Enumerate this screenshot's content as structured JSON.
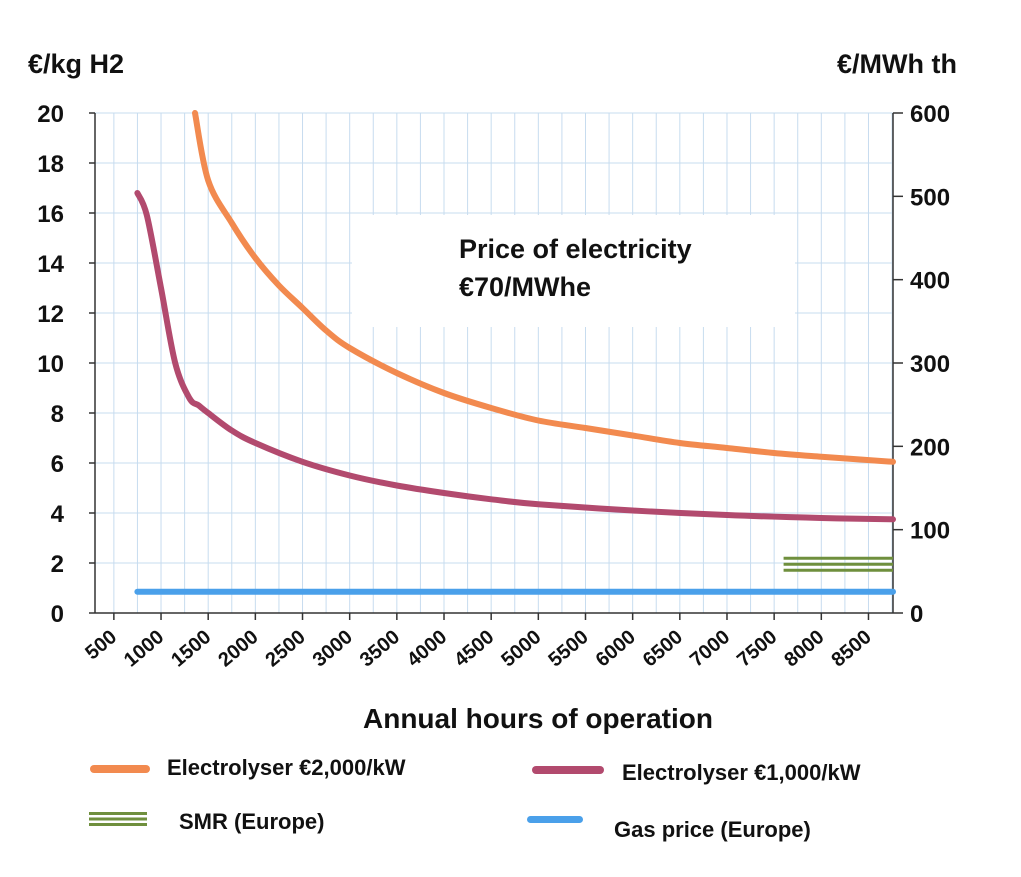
{
  "chart_data": {
    "type": "line",
    "annotation": {
      "line1": "Price of electricity",
      "line2": "€70/MWhe"
    },
    "xlabel": "Annual hours of operation",
    "ylabel_left": "€/kg H2",
    "ylabel_right": "€/MWh th",
    "xlim": [
      300,
      8760
    ],
    "x_ticks": [
      500,
      1000,
      1500,
      2000,
      2500,
      3000,
      3500,
      4000,
      4500,
      5000,
      5500,
      6000,
      6500,
      7000,
      7500,
      8000,
      8500
    ],
    "ylim_left": [
      0,
      20
    ],
    "y_ticks_left": [
      0,
      2,
      4,
      6,
      8,
      10,
      12,
      14,
      16,
      18,
      20
    ],
    "ylim_right": [
      0,
      600
    ],
    "y_ticks_right": [
      0,
      100,
      200,
      300,
      400,
      500,
      600
    ],
    "grid": true,
    "legend_position": "bottom",
    "series": [
      {
        "name": "Electrolyser €2,000/kW",
        "color": "#f28a4f",
        "style": "solid",
        "points": [
          [
            1360,
            20.0
          ],
          [
            1500,
            17.3
          ],
          [
            1750,
            15.6
          ],
          [
            2000,
            14.2
          ],
          [
            2250,
            13.1
          ],
          [
            2500,
            12.2
          ],
          [
            2750,
            11.3
          ],
          [
            3000,
            10.6
          ],
          [
            3500,
            9.6
          ],
          [
            4000,
            8.8
          ],
          [
            4500,
            8.2
          ],
          [
            5000,
            7.7
          ],
          [
            5500,
            7.4
          ],
          [
            6000,
            7.1
          ],
          [
            6500,
            6.8
          ],
          [
            7000,
            6.6
          ],
          [
            7500,
            6.4
          ],
          [
            8000,
            6.25
          ],
          [
            8760,
            6.05
          ]
        ]
      },
      {
        "name": "Electrolyser €1,000/kW",
        "color": "#b24a6e",
        "style": "solid",
        "points": [
          [
            750,
            16.8
          ],
          [
            850,
            15.9
          ],
          [
            1000,
            13.0
          ],
          [
            1150,
            10.0
          ],
          [
            1300,
            8.6
          ],
          [
            1400,
            8.3
          ],
          [
            1500,
            8.0
          ],
          [
            1750,
            7.3
          ],
          [
            2000,
            6.8
          ],
          [
            2500,
            6.05
          ],
          [
            3000,
            5.5
          ],
          [
            3500,
            5.1
          ],
          [
            4000,
            4.8
          ],
          [
            4500,
            4.55
          ],
          [
            5000,
            4.35
          ],
          [
            6000,
            4.1
          ],
          [
            7000,
            3.92
          ],
          [
            8000,
            3.8
          ],
          [
            8760,
            3.75
          ]
        ]
      },
      {
        "name": "SMR (Europe)",
        "color": "#6f8f3d",
        "style": "triple-line",
        "points": [
          [
            7600,
            1.95
          ],
          [
            8760,
            1.95
          ]
        ]
      },
      {
        "name": "Gas price (Europe)",
        "color": "#4aa0ea",
        "style": "solid",
        "points": [
          [
            750,
            0.85
          ],
          [
            8760,
            0.85
          ]
        ]
      }
    ]
  }
}
